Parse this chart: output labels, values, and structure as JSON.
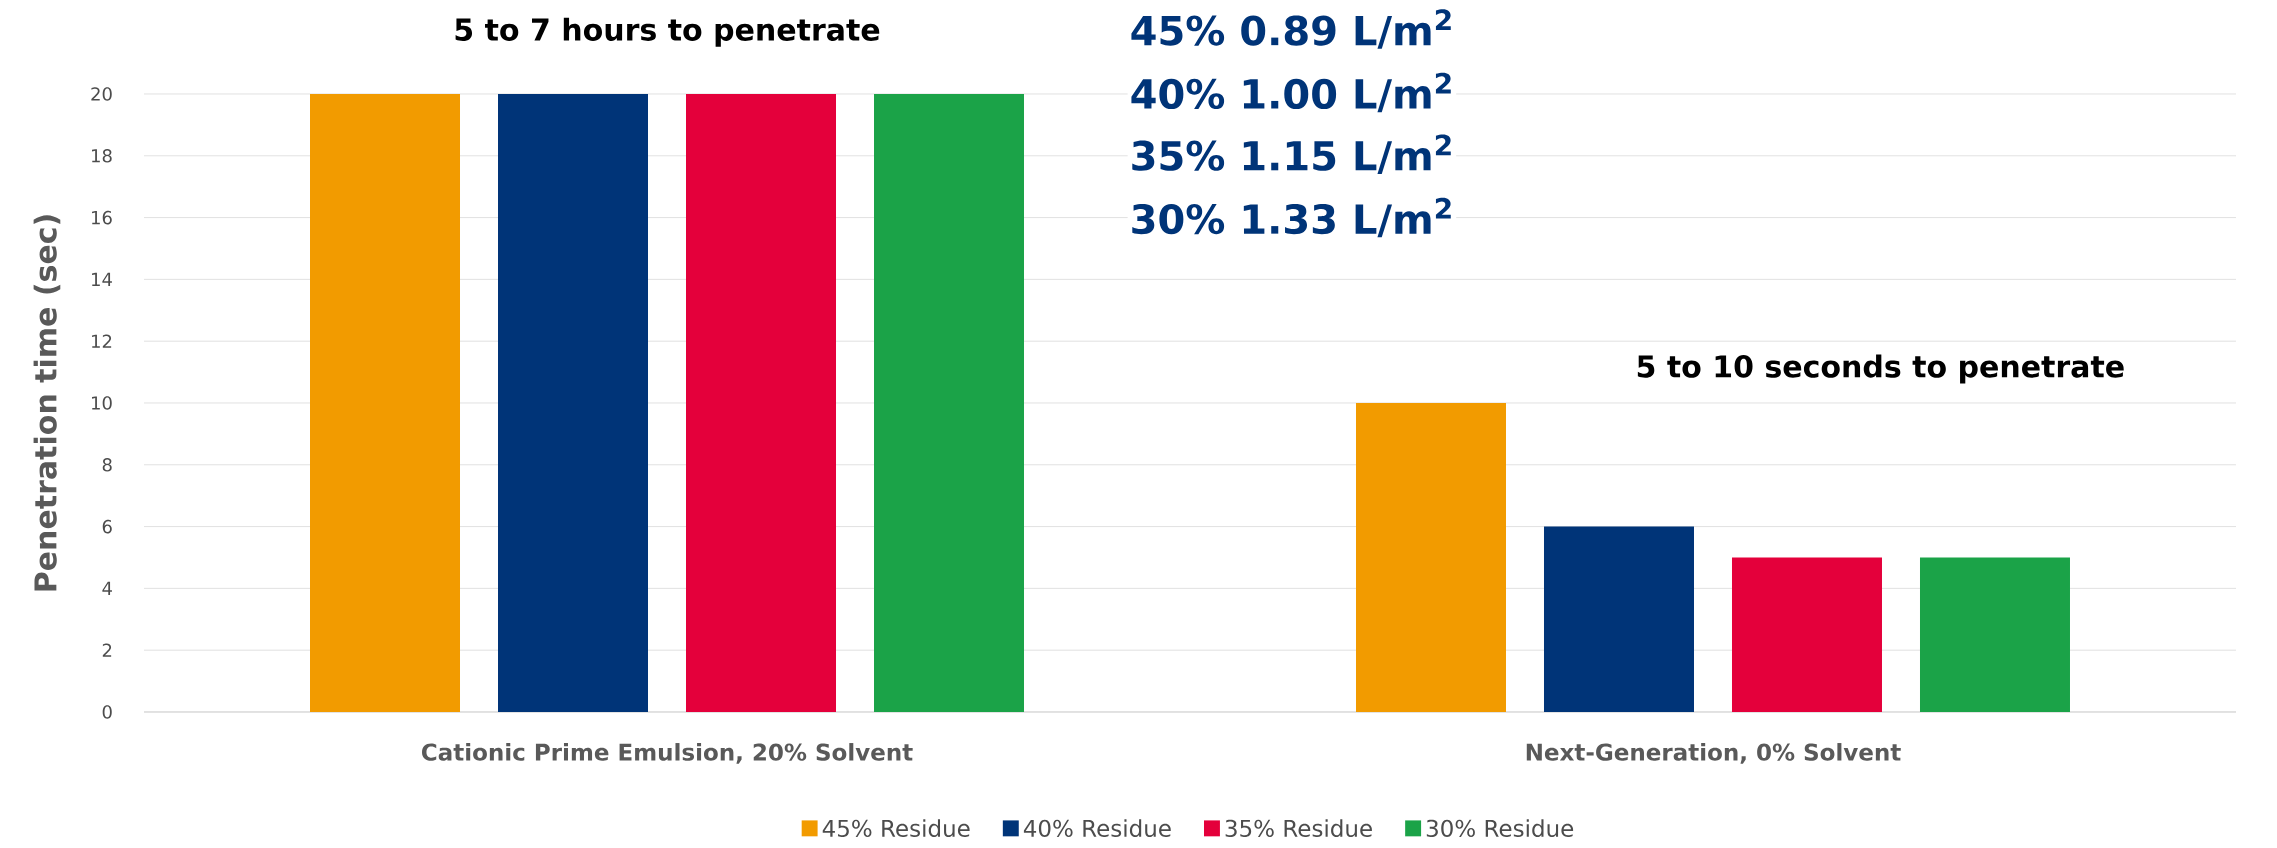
{
  "chart_data": {
    "type": "bar",
    "ylabel": "Penetration time (sec)",
    "categories": [
      "Cationic Prime Emulsion, 20% Solvent",
      "Next-Generation, 0% Solvent"
    ],
    "series": [
      {
        "name": "45% Residue",
        "color": "#f29b00",
        "values": [
          20,
          10
        ]
      },
      {
        "name": "40% Residue",
        "color": "#003478",
        "values": [
          20,
          6
        ]
      },
      {
        "name": "35% Residue",
        "color": "#e4003b",
        "values": [
          20,
          5
        ]
      },
      {
        "name": "30% Residue",
        "color": "#1ba348",
        "values": [
          20,
          5
        ]
      }
    ],
    "ylim": [
      0,
      20
    ],
    "yticks": [
      0,
      2,
      4,
      6,
      8,
      10,
      12,
      14,
      16,
      18,
      20
    ],
    "grid": "y",
    "legend": "bottom",
    "annotations": [
      "5 to 7 hours to penetrate",
      "45% 0.89 L/m$^{2}$",
      "40% 1.00 L/m$^{2}$",
      "35% 1.15 L/m$^{2}$",
      "30% 1.33 L/m$^{2}$",
      "5 to 10 seconds to penetrate"
    ]
  }
}
